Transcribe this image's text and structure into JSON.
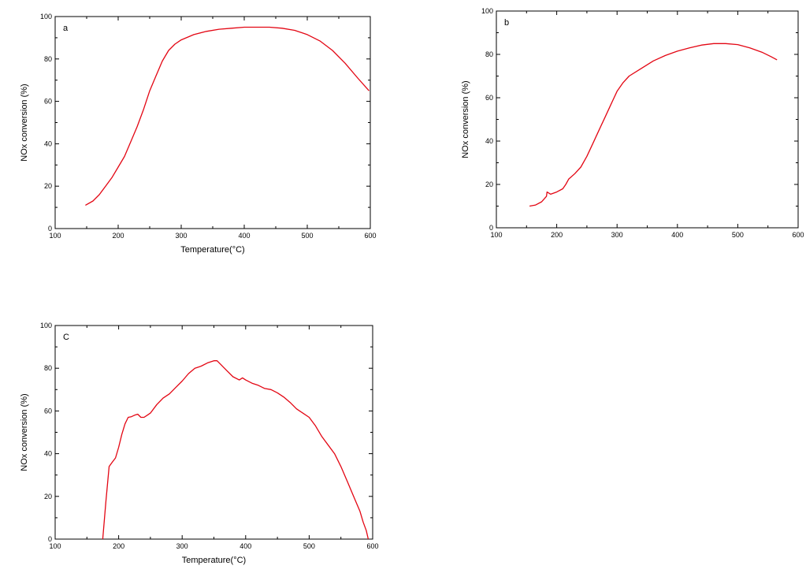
{
  "colors": {
    "series": "#e30613",
    "axis": "#000000"
  },
  "chart_data": [
    {
      "type": "line",
      "panel_label": "a",
      "xlabel": "Temperature(°C)",
      "ylabel": "NOx conversion (%)",
      "xlim": [
        100,
        600
      ],
      "ylim": [
        0,
        100
      ],
      "xticks": [
        100,
        200,
        300,
        400,
        500,
        600
      ],
      "yticks": [
        0,
        20,
        40,
        60,
        80,
        100
      ],
      "grid": false,
      "series": [
        {
          "x": [
            148,
            160,
            170,
            180,
            190,
            200,
            210,
            220,
            230,
            240,
            250,
            260,
            270,
            280,
            290,
            300,
            320,
            340,
            360,
            380,
            400,
            420,
            440,
            460,
            480,
            500,
            520,
            540,
            560,
            580,
            598
          ],
          "y": [
            11,
            13,
            16,
            20,
            24,
            29,
            34,
            41,
            48,
            56,
            65,
            72,
            79,
            84,
            87,
            89,
            91.5,
            93,
            94,
            94.5,
            95,
            95,
            95,
            94.5,
            93.5,
            91.5,
            88.5,
            84,
            78,
            71,
            65
          ]
        }
      ]
    },
    {
      "type": "line",
      "panel_label": "b",
      "xlabel": "",
      "ylabel": "NOx conversion (%)",
      "xlim": [
        100,
        600
      ],
      "ylim": [
        0,
        100
      ],
      "xticks": [
        100,
        200,
        300,
        400,
        500,
        600
      ],
      "yticks": [
        0,
        20,
        40,
        60,
        80,
        100
      ],
      "grid": false,
      "series": [
        {
          "x": [
            155,
            165,
            175,
            183,
            184,
            190,
            200,
            210,
            215,
            220,
            230,
            240,
            250,
            260,
            270,
            280,
            290,
            300,
            310,
            320,
            340,
            360,
            380,
            400,
            420,
            440,
            460,
            480,
            500,
            520,
            540,
            555,
            565
          ],
          "y": [
            10,
            10.5,
            12,
            14.5,
            16.5,
            15.5,
            16.5,
            18,
            20,
            22.5,
            25,
            28,
            33,
            39,
            45,
            51,
            57,
            63,
            67,
            70,
            73.5,
            77,
            79.5,
            81.5,
            83,
            84.3,
            85,
            85,
            84.5,
            83,
            81,
            79,
            77.5
          ]
        }
      ]
    },
    {
      "type": "line",
      "panel_label": "C",
      "xlabel": "Temperature(°C)",
      "ylabel": "NOx conversion (%)",
      "xlim": [
        100,
        600
      ],
      "ylim": [
        0,
        100
      ],
      "xticks": [
        100,
        200,
        300,
        400,
        500,
        600
      ],
      "yticks": [
        0,
        20,
        40,
        60,
        80,
        100
      ],
      "grid": false,
      "series": [
        {
          "x": [
            175,
            180,
            185,
            190,
            195,
            200,
            205,
            210,
            215,
            220,
            225,
            230,
            235,
            240,
            245,
            250,
            260,
            270,
            280,
            290,
            300,
            310,
            320,
            330,
            340,
            350,
            355,
            360,
            370,
            380,
            390,
            395,
            400,
            410,
            420,
            430,
            440,
            450,
            460,
            470,
            480,
            490,
            500,
            510,
            520,
            530,
            540,
            550,
            560,
            570,
            580,
            585,
            590,
            593
          ],
          "y": [
            0,
            18,
            34,
            36,
            38,
            43,
            49,
            54,
            57,
            57.3,
            58,
            58.5,
            57,
            57,
            58,
            59,
            63,
            66,
            68,
            71,
            74,
            77.5,
            80,
            81,
            82.5,
            83.5,
            83.5,
            82,
            79,
            76,
            74.5,
            75.5,
            74.5,
            73,
            72,
            70.5,
            70,
            68.5,
            66.5,
            64,
            61,
            59,
            57,
            53,
            48,
            44,
            40,
            34,
            27,
            20,
            13,
            8,
            4,
            0
          ]
        }
      ]
    }
  ]
}
